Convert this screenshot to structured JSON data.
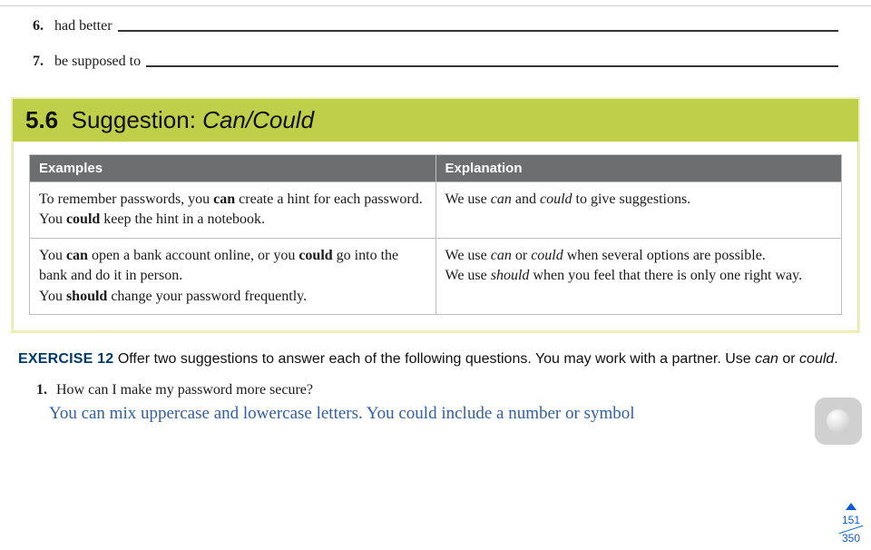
{
  "fillins": [
    {
      "num": "6.",
      "term": "had better"
    },
    {
      "num": "7.",
      "term": "be supposed to"
    }
  ],
  "section": {
    "number": "5.6",
    "title_plain": "Suggestion: ",
    "title_italic": "Can/Could",
    "header_bg": "#bfcf4a",
    "table": {
      "head_bg": "#6d6e70",
      "head_color": "#ffffff",
      "border_color": "#bfbfbf",
      "col1": "Examples",
      "col2": "Explanation",
      "rows": [
        {
          "ex_parts": [
            {
              "t": "To remember passwords, you "
            },
            {
              "t": "can",
              "b": true
            },
            {
              "t": " create a hint for each password. You "
            },
            {
              "t": "could",
              "b": true
            },
            {
              "t": " keep the hint in a notebook."
            }
          ],
          "expl_parts": [
            {
              "t": "We use "
            },
            {
              "t": "can",
              "i": true
            },
            {
              "t": " and "
            },
            {
              "t": "could",
              "i": true
            },
            {
              "t": " to give suggestions."
            }
          ]
        },
        {
          "ex_parts": [
            {
              "t": "You "
            },
            {
              "t": "can",
              "b": true
            },
            {
              "t": " open a bank account online, or you "
            },
            {
              "t": "could",
              "b": true
            },
            {
              "t": " go into the bank and do it in person."
            },
            {
              "br": true
            },
            {
              "t": "You "
            },
            {
              "t": "should",
              "b": true
            },
            {
              "t": " change your password frequently."
            }
          ],
          "expl_parts": [
            {
              "t": "We use "
            },
            {
              "t": "can",
              "i": true
            },
            {
              "t": " or "
            },
            {
              "t": "could",
              "i": true
            },
            {
              "t": " when several options are possible."
            },
            {
              "br": true
            },
            {
              "t": "We use "
            },
            {
              "t": "should",
              "i": true
            },
            {
              "t": " when you feel that there is only one right way."
            }
          ]
        }
      ]
    }
  },
  "exercise": {
    "label": "EXERCISE 12",
    "instr_parts": [
      {
        "t": "  Offer two suggestions to answer each of the following questions. You may work with a partner. Use "
      },
      {
        "t": "can",
        "i": true
      },
      {
        "t": " or "
      },
      {
        "t": "could",
        "i": true
      },
      {
        "t": "."
      }
    ],
    "q1_num": "1.",
    "q1_text": "How can I make my password more secure?",
    "answer": "You can mix uppercase and lowercase letters. You could include a number or symbol"
  },
  "page_counter": {
    "current": "151",
    "total": "350",
    "color": "#0a5bd6"
  }
}
